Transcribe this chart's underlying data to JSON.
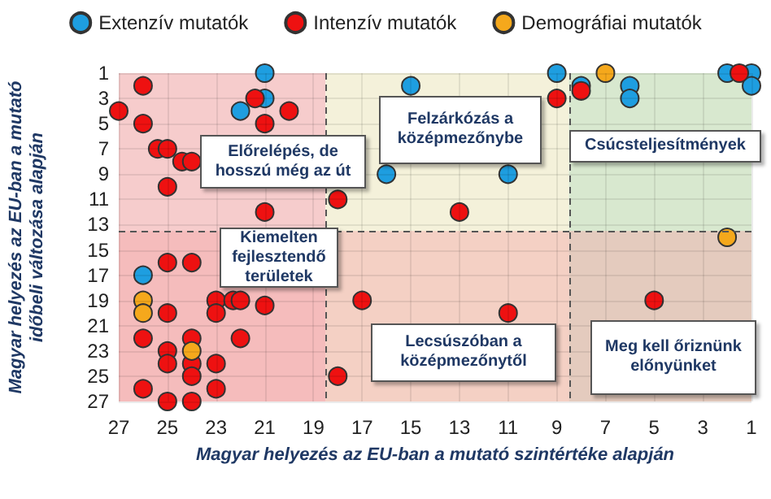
{
  "chart_data": {
    "type": "scatter",
    "xlabel": "Magyar helyezés az EU-ban a mutató szintértéke alapján",
    "ylabel": "Magyar helyezés az EU-ban a mutató időbeli változása alapján",
    "xlim": [
      27,
      1
    ],
    "ylim": [
      27,
      1
    ],
    "xticks": [
      27,
      25,
      23,
      21,
      19,
      17,
      15,
      13,
      11,
      9,
      7,
      5,
      3,
      1
    ],
    "yticks": [
      1,
      3,
      5,
      7,
      9,
      11,
      13,
      15,
      17,
      19,
      21,
      23,
      25,
      27
    ],
    "grid": true,
    "legend": "top",
    "marker": "circle",
    "bands": [
      {
        "axis": "x",
        "from": 27,
        "to": 18.5,
        "color": "#f6cccc"
      },
      {
        "axis": "x",
        "from": 18.5,
        "to": 8.5,
        "color": "#f4f1da"
      },
      {
        "axis": "x",
        "from": 8.5,
        "to": 1,
        "color": "#d8e8cf"
      },
      {
        "axis": "y",
        "from": 13.5,
        "to": 27,
        "color": "#f3a9a9"
      }
    ],
    "ref_lines": [
      {
        "axis": "x",
        "value": 18.5,
        "color": "#555555",
        "line_style": "dashed"
      },
      {
        "axis": "x",
        "value": 8.5,
        "color": "#555555",
        "line_style": "dashed"
      },
      {
        "axis": "y",
        "value": 13.5,
        "color": "#555555",
        "line_style": "dashed"
      }
    ],
    "annotations": [
      "Előrelépés, de hosszú még az út",
      "Felzárkózás a középmezőnybe",
      "Csúcsteljesítmények",
      "Kiemelten fejlesztendő területek",
      "Lecsúszóban a középmezőnytől",
      "Meg kell őriznünk előnyünket"
    ],
    "series": [
      {
        "name": "Extenzív mutatók",
        "color": "#1e9ee0",
        "x": [
          21,
          21,
          22,
          16,
          15,
          9,
          11,
          8,
          6,
          6,
          2,
          1,
          1,
          26
        ],
        "values": [
          1,
          3,
          4,
          9,
          2,
          1,
          9,
          2,
          2,
          3,
          1,
          1,
          2,
          17
        ]
      },
      {
        "name": "Intenzív mutatók",
        "color": "#ee1111",
        "x": [
          26,
          21.4,
          27,
          20,
          26,
          21,
          25.4,
          25,
          24.4,
          24,
          25,
          18,
          21,
          9,
          13,
          8,
          1.5,
          25,
          24,
          25,
          23,
          22.3,
          22,
          21,
          23,
          17,
          26,
          24,
          22,
          25,
          25,
          24,
          23,
          24,
          18,
          26,
          23,
          25,
          24,
          11,
          5
        ],
        "values": [
          2,
          3,
          4,
          4,
          5,
          5,
          7,
          7,
          8,
          8,
          10,
          11,
          12,
          3,
          12,
          2.4,
          1,
          16,
          16,
          20,
          19,
          19,
          19,
          19.4,
          20,
          19,
          22,
          22,
          22,
          23,
          24,
          24,
          24,
          25,
          25,
          26,
          26,
          27,
          27,
          20,
          19
        ]
      },
      {
        "name": "Demográfiai mutatók",
        "color": "#f5a81c",
        "x": [
          7,
          2,
          26,
          26,
          24
        ],
        "values": [
          1,
          14,
          19,
          20,
          23
        ]
      }
    ]
  }
}
